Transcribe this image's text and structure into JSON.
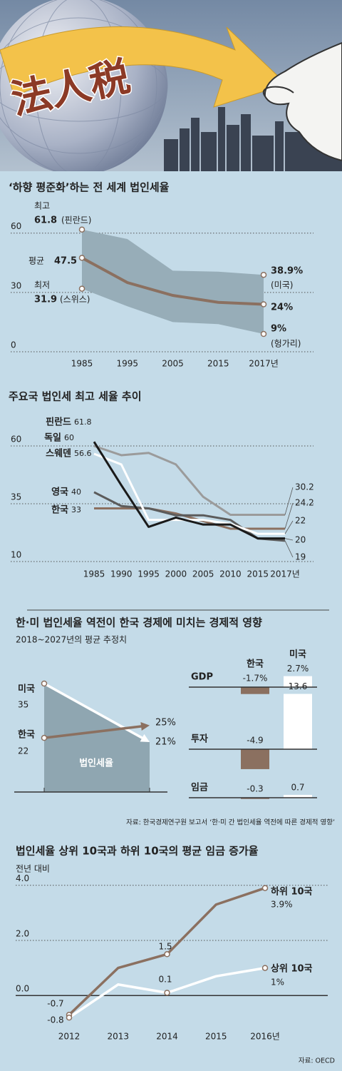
{
  "header": {
    "title": "法人税"
  },
  "chart_data": [
    {
      "type": "band",
      "title": "‘하향 평준화’하는 전 세계 법인세율",
      "categories": [
        "1985",
        "1995",
        "2005",
        "2015",
        "2017년"
      ],
      "ylim": [
        0,
        70
      ],
      "yticks": [
        0,
        30,
        60
      ],
      "grid": true,
      "series": [
        {
          "name": "최고",
          "color": "#97adb8",
          "values": [
            61.8,
            57,
            41,
            40.5,
            38.9
          ],
          "value_labels": [
            "61.8",
            null,
            null,
            null,
            "38.9%"
          ]
        },
        {
          "name": "평균",
          "color": "#8b7060",
          "values": [
            47.5,
            35,
            28.5,
            25,
            24
          ],
          "value_labels": [
            "47.5",
            null,
            null,
            null,
            "24%"
          ]
        },
        {
          "name": "최저",
          "color": "#97adb8",
          "values": [
            31.9,
            23,
            15,
            14,
            9
          ],
          "value_labels": [
            "31.9",
            null,
            null,
            null,
            "9%"
          ]
        }
      ],
      "annotations": [
        "(핀란드)",
        "(스위스)",
        "(미국)",
        "(헝가리)"
      ]
    },
    {
      "type": "line",
      "title": "주요국 법인세 최고 세율 추이",
      "categories": [
        "1985",
        "1990",
        "1995",
        "2000",
        "2005",
        "2010",
        "2015",
        "2017년"
      ],
      "ylim": [
        10,
        70
      ],
      "yticks": [
        10,
        35,
        60
      ],
      "grid": true,
      "series": [
        {
          "name": "핀란드",
          "color": "#1a1a1a",
          "values": [
            61.8,
            43,
            25,
            29,
            26,
            26,
            20,
            20
          ]
        },
        {
          "name": "독일",
          "color": "#9b9b9b",
          "values": [
            60,
            56,
            57,
            52,
            38,
            30.2,
            30.2,
            30.2
          ]
        },
        {
          "name": "스웨덴",
          "color": "#ffffff",
          "values": [
            56.6,
            52,
            28,
            28,
            28,
            26.3,
            22,
            22
          ]
        },
        {
          "name": "영국",
          "color": "#5b5b5b",
          "values": [
            40,
            34,
            33,
            30,
            30,
            28,
            20,
            19
          ]
        },
        {
          "name": "한국",
          "color": "#8b7060",
          "values": [
            33,
            33,
            33,
            30.8,
            27.5,
            24.2,
            24.2,
            24.2
          ]
        }
      ]
    },
    {
      "type": "slope",
      "title": "한·미 법인세율 역전이 한국 경제에 미치는 경제적 영향",
      "subtitle": "2018~2027년의 평균 추정치",
      "label": "법인세율",
      "series": [
        {
          "name": "미국",
          "color": "#ffffff",
          "values": [
            35,
            21
          ],
          "value_labels": [
            "35",
            "21%"
          ]
        },
        {
          "name": "한국",
          "color": "#8b7060",
          "values": [
            22,
            25
          ],
          "value_labels": [
            "22",
            "25%"
          ]
        }
      ]
    },
    {
      "type": "bar",
      "categories": [
        "GDP",
        "투자",
        "임금"
      ],
      "series": [
        {
          "name": "한국",
          "color": "#8b7060",
          "values": [
            -1.7,
            -4.9,
            -0.3
          ],
          "value_labels": [
            "-1.7%",
            "-4.9",
            "-0.3"
          ]
        },
        {
          "name": "미국",
          "color": "#ffffff",
          "values": [
            2.7,
            13.6,
            0.7
          ],
          "value_labels": [
            "2.7%",
            "13.6",
            "0.7"
          ]
        }
      ],
      "source": "자료: 한국경제연구원 보고서 ‘한·미 간 법인세율 역전에 따른 경제적 영향’"
    },
    {
      "type": "line",
      "title": "법인세율 상위 10국과 하위 10국의 평균 임금 증가율",
      "subtitle": "전년 대비",
      "categories": [
        "2012",
        "2013",
        "2014",
        "2015",
        "2016년"
      ],
      "ylim": [
        -0.9,
        4.2
      ],
      "yticks": [
        {
          "value": 0,
          "label": "0.0"
        },
        {
          "value": 2,
          "label": "2.0"
        },
        {
          "value": 4,
          "label": "4.0"
        }
      ],
      "grid": true,
      "series": [
        {
          "name": "하위 10국",
          "color": "#8b7060",
          "values": [
            -0.7,
            1.0,
            1.5,
            3.3,
            3.9
          ],
          "value_labels": [
            "-0.7",
            null,
            "1.5",
            null,
            "3.9%"
          ]
        },
        {
          "name": "상위 10국",
          "color": "#ffffff",
          "values": [
            -0.8,
            0.4,
            0.1,
            0.7,
            1.0
          ],
          "value_labels": [
            "-0.8",
            null,
            "0.1",
            null,
            "1%"
          ]
        }
      ],
      "source": "자료: OECD"
    }
  ]
}
